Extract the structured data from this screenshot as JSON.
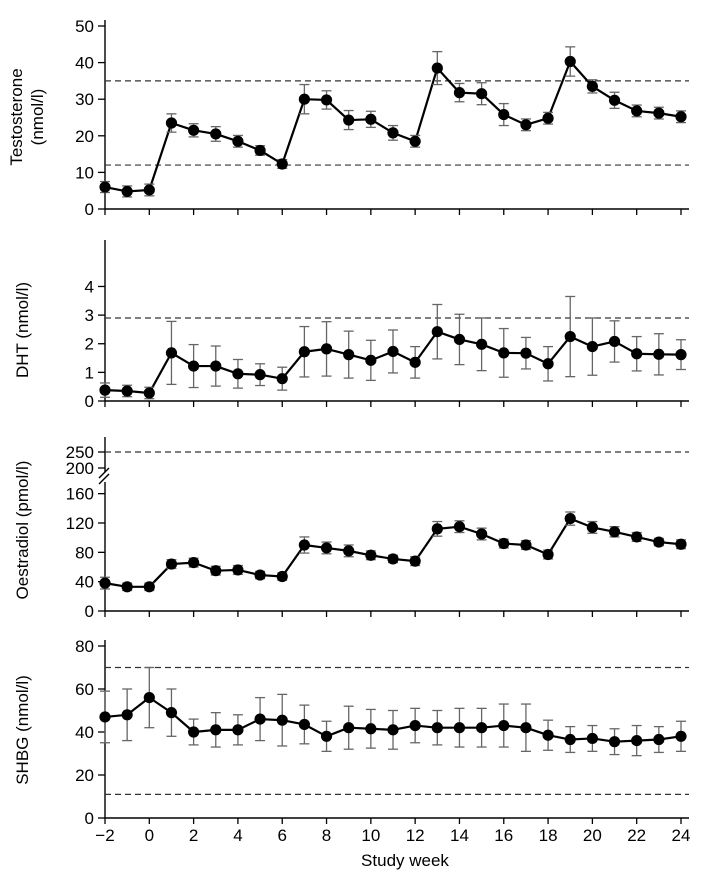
{
  "figure": {
    "xlabel": "Study week"
  },
  "chart_data": [
    {
      "type": "line",
      "ylabel_lines": [
        "Testosterone",
        "(nmol/l)"
      ],
      "x": [
        -2,
        -1,
        0,
        1,
        2,
        3,
        4,
        5,
        6,
        7,
        8,
        9,
        10,
        11,
        12,
        13,
        14,
        15,
        16,
        17,
        18,
        19,
        20,
        21,
        22,
        23,
        24
      ],
      "xlim": [
        -2,
        24
      ],
      "xticks": [
        -2,
        0,
        2,
        4,
        6,
        8,
        10,
        12,
        14,
        16,
        18,
        20,
        22,
        24
      ],
      "ylim": [
        0,
        50
      ],
      "yticks": [
        0,
        10,
        20,
        30,
        40,
        50
      ],
      "ref_lines": [
        12,
        35
      ],
      "series": [
        {
          "name": "Testosterone",
          "values": [
            6,
            4.8,
            5.2,
            23.5,
            21.5,
            20.5,
            18.5,
            16,
            12.3,
            30,
            29.8,
            24.3,
            24.5,
            20.8,
            18.5,
            38.5,
            31.8,
            31.5,
            25.8,
            23,
            24.8,
            40.3,
            33.5,
            29.7,
            26.8,
            26.2,
            25.2
          ],
          "errors": [
            1.5,
            1.5,
            1.6,
            2.5,
            1.8,
            2,
            1.6,
            1.3,
            1.2,
            4,
            2.5,
            2.6,
            2.2,
            2,
            1.6,
            4.5,
            2.5,
            3,
            3,
            1.6,
            1.6,
            4,
            1.8,
            2.2,
            1.6,
            1.6,
            1.6
          ]
        }
      ]
    },
    {
      "type": "line",
      "ylabel_lines": [
        "DHT (nmol/l)"
      ],
      "x": [
        -2,
        -1,
        0,
        1,
        2,
        3,
        4,
        5,
        6,
        7,
        8,
        9,
        10,
        11,
        12,
        13,
        14,
        15,
        16,
        17,
        18,
        19,
        20,
        21,
        22,
        23,
        24
      ],
      "xlim": [
        -2,
        24
      ],
      "xticks": [
        -2,
        0,
        2,
        4,
        6,
        8,
        10,
        12,
        14,
        16,
        18,
        20,
        22,
        24
      ],
      "ylim": [
        0,
        4.75
      ],
      "yticks": [
        0,
        1,
        2,
        3,
        4
      ],
      "ref_lines": [
        2.9
      ],
      "series": [
        {
          "name": "DHT",
          "values": [
            0.38,
            0.35,
            0.28,
            1.68,
            1.22,
            1.22,
            0.95,
            0.92,
            0.78,
            1.72,
            1.82,
            1.62,
            1.42,
            1.73,
            1.35,
            2.42,
            2.15,
            1.98,
            1.68,
            1.67,
            1.3,
            2.25,
            1.9,
            2.08,
            1.65,
            1.63,
            1.62
          ],
          "errors": [
            0.25,
            0.2,
            0.2,
            1.1,
            0.75,
            0.7,
            0.5,
            0.38,
            0.4,
            0.88,
            0.95,
            0.82,
            0.7,
            0.75,
            0.55,
            0.95,
            0.88,
            0.92,
            0.85,
            0.55,
            0.6,
            1.4,
            1.0,
            0.72,
            0.6,
            0.72,
            0.52
          ]
        }
      ]
    },
    {
      "type": "line",
      "ylabel_lines": [
        "Oestradiol (pmol/l)"
      ],
      "x": [
        -2,
        -1,
        0,
        1,
        2,
        3,
        4,
        5,
        6,
        7,
        8,
        9,
        10,
        11,
        12,
        13,
        14,
        15,
        16,
        17,
        18,
        19,
        20,
        21,
        22,
        23,
        24
      ],
      "xlim": [
        -2,
        24
      ],
      "xticks": [
        -2,
        0,
        2,
        4,
        6,
        8,
        10,
        12,
        14,
        16,
        18,
        20,
        22,
        24
      ],
      "ylim": [
        0,
        165
      ],
      "yticks": [
        0,
        40,
        80,
        120,
        160
      ],
      "break_labels": [
        "200",
        "250"
      ],
      "ref_line_label": "250",
      "series": [
        {
          "name": "Oestradiol",
          "values": [
            38,
            33,
            33,
            64,
            66,
            55,
            56,
            49,
            47,
            90,
            86,
            82,
            76,
            71,
            68,
            112,
            115,
            105,
            92,
            90,
            77,
            126,
            114,
            108,
            101,
            94,
            91
          ],
          "errors": [
            8,
            5,
            5,
            6,
            6,
            6,
            6,
            5,
            5,
            11,
            8,
            8,
            6,
            5,
            6,
            10,
            8,
            8,
            6,
            6,
            6,
            9,
            8,
            7,
            6,
            5,
            6
          ]
        }
      ]
    },
    {
      "type": "line",
      "ylabel_lines": [
        "SHBG (nmol/l)"
      ],
      "x": [
        -2,
        -1,
        0,
        1,
        2,
        3,
        4,
        5,
        6,
        7,
        8,
        9,
        10,
        11,
        12,
        13,
        14,
        15,
        16,
        17,
        18,
        19,
        20,
        21,
        22,
        23,
        24
      ],
      "xlim": [
        -2,
        24
      ],
      "xticks": [
        -2,
        0,
        2,
        4,
        6,
        8,
        10,
        12,
        14,
        16,
        18,
        20,
        22,
        24
      ],
      "ylim": [
        0,
        80
      ],
      "yticks": [
        0,
        20,
        40,
        60,
        80
      ],
      "ref_lines": [
        11,
        70
      ],
      "series": [
        {
          "name": "SHBG",
          "values": [
            47,
            48,
            56,
            49,
            40,
            41,
            41,
            46,
            45.5,
            43.5,
            38,
            42,
            41.5,
            41,
            43,
            42,
            42,
            42,
            43,
            42,
            38.5,
            36.5,
            37,
            35.5,
            36,
            36.5,
            38
          ],
          "errors": [
            12,
            12,
            14,
            11,
            6,
            8,
            7,
            10,
            12,
            9,
            7,
            10,
            9,
            9,
            8,
            8,
            9,
            9,
            10,
            11,
            7,
            6,
            6,
            6,
            7,
            6,
            7
          ]
        }
      ]
    }
  ],
  "colors": {
    "line": "#000000",
    "error": "#666666",
    "ref": "#333333"
  }
}
